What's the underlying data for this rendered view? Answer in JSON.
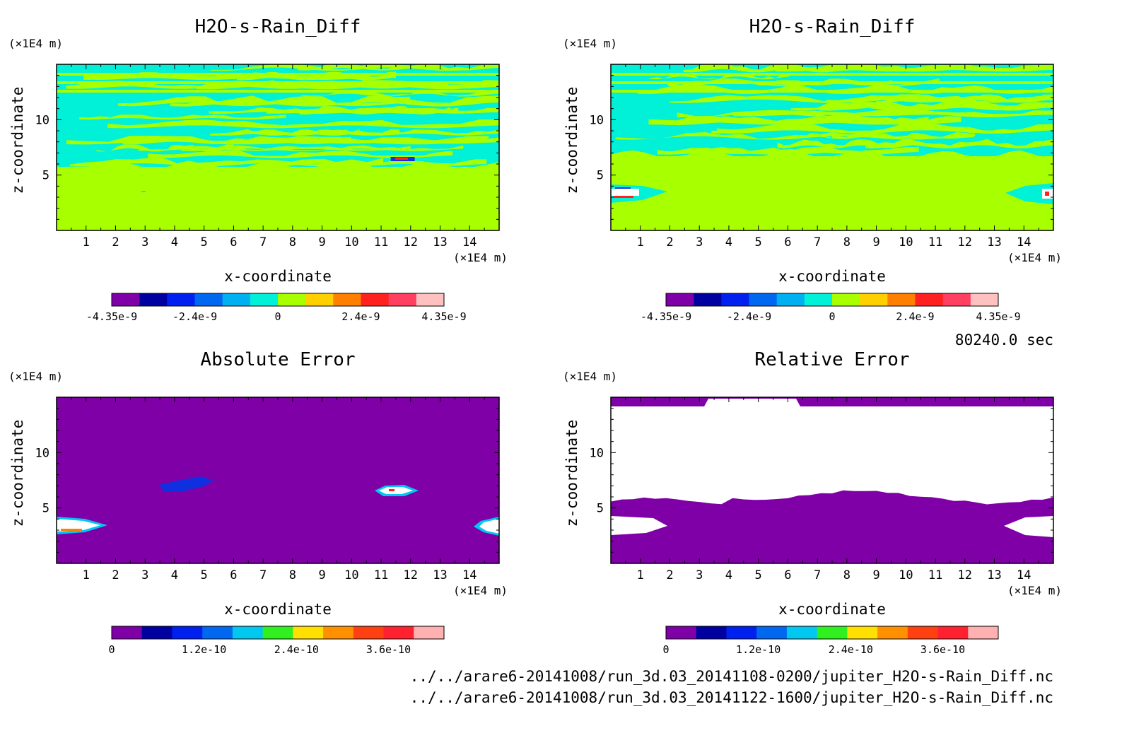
{
  "figure": {
    "time_label": "80240.0 sec",
    "footer_lines": [
      "../../arare6-20141008/run_3d.03_20141108-0200/jupiter_H2O-s-Rain_Diff.nc",
      "../../arare6-20141008/run_3d.03_20141122-1600/jupiter_H2O-s-Rain_Diff.nc"
    ]
  },
  "colors": {
    "lime": "#a8ff00",
    "cyan": "#00f0d8",
    "purple": "#8000a8",
    "white": "#ffffff",
    "blue": "#1030e0",
    "orange": "#ff8000",
    "red": "#ff2020"
  },
  "chart_data": [
    {
      "type": "heatmap",
      "title": "H2O-s-Rain_Diff",
      "xlabel": "x-coordinate",
      "ylabel": "z-coordinate",
      "x_unit": "(×1E4 m)",
      "y_unit": "(×1E4 m)",
      "xlim": [
        0,
        15
      ],
      "ylim": [
        0,
        15
      ],
      "x_ticks": [
        "1",
        "2",
        "3",
        "4",
        "5",
        "6",
        "7",
        "8",
        "9",
        "10",
        "11",
        "12",
        "13",
        "14"
      ],
      "y_ticks": [
        "5",
        "10"
      ],
      "colorbar": {
        "labels": [
          "-4.35e-9",
          "-2.4e-9",
          "0",
          "2.4e-9",
          "4.35e-9"
        ],
        "colors": [
          "#8000a8",
          "#0000a0",
          "#0020f0",
          "#0068f0",
          "#00b0f0",
          "#00f0d8",
          "#a8ff00",
          "#ffd000",
          "#ff8000",
          "#ff2020",
          "#ff4060",
          "#ffc0c0"
        ]
      }
    },
    {
      "type": "heatmap",
      "title": "H2O-s-Rain_Diff",
      "xlabel": "x-coordinate",
      "ylabel": "z-coordinate",
      "x_unit": "(×1E4 m)",
      "y_unit": "(×1E4 m)",
      "xlim": [
        0,
        15
      ],
      "ylim": [
        0,
        15
      ],
      "x_ticks": [
        "1",
        "2",
        "3",
        "4",
        "5",
        "6",
        "7",
        "8",
        "9",
        "10",
        "11",
        "12",
        "13",
        "14"
      ],
      "y_ticks": [
        "5",
        "10"
      ],
      "colorbar": {
        "labels": [
          "-4.35e-9",
          "-2.4e-9",
          "0",
          "2.4e-9",
          "4.35e-9"
        ],
        "colors": [
          "#8000a8",
          "#0000a0",
          "#0020f0",
          "#0068f0",
          "#00b0f0",
          "#00f0d8",
          "#a8ff00",
          "#ffd000",
          "#ff8000",
          "#ff2020",
          "#ff4060",
          "#ffc0c0"
        ]
      }
    },
    {
      "type": "heatmap",
      "title": "Absolute Error",
      "xlabel": "x-coordinate",
      "ylabel": "z-coordinate",
      "x_unit": "(×1E4 m)",
      "y_unit": "(×1E4 m)",
      "xlim": [
        0,
        15
      ],
      "ylim": [
        0,
        15
      ],
      "x_ticks": [
        "1",
        "2",
        "3",
        "4",
        "5",
        "6",
        "7",
        "8",
        "9",
        "10",
        "11",
        "12",
        "13",
        "14"
      ],
      "y_ticks": [
        "5",
        "10"
      ],
      "colorbar": {
        "labels": [
          "0",
          "1.2e-10",
          "2.4e-10",
          "3.6e-10"
        ],
        "colors": [
          "#8000a8",
          "#0000a0",
          "#0020f0",
          "#0068f0",
          "#00c8f0",
          "#30f020",
          "#ffe000",
          "#ff9000",
          "#ff4010",
          "#ff2030",
          "#ffb0b0"
        ]
      }
    },
    {
      "type": "heatmap",
      "title": "Relative Error",
      "xlabel": "x-coordinate",
      "ylabel": "z-coordinate",
      "x_unit": "(×1E4 m)",
      "y_unit": "(×1E4 m)",
      "xlim": [
        0,
        15
      ],
      "ylim": [
        0,
        15
      ],
      "x_ticks": [
        "1",
        "2",
        "3",
        "4",
        "5",
        "6",
        "7",
        "8",
        "9",
        "10",
        "11",
        "12",
        "13",
        "14"
      ],
      "y_ticks": [
        "5",
        "10"
      ],
      "colorbar": {
        "labels": [
          "0",
          "1.2e-10",
          "2.4e-10",
          "3.6e-10"
        ],
        "colors": [
          "#8000a8",
          "#0000a0",
          "#0020f0",
          "#0068f0",
          "#00c8f0",
          "#30f020",
          "#ffe000",
          "#ff9000",
          "#ff4010",
          "#ff2030",
          "#ffb0b0"
        ]
      }
    }
  ]
}
